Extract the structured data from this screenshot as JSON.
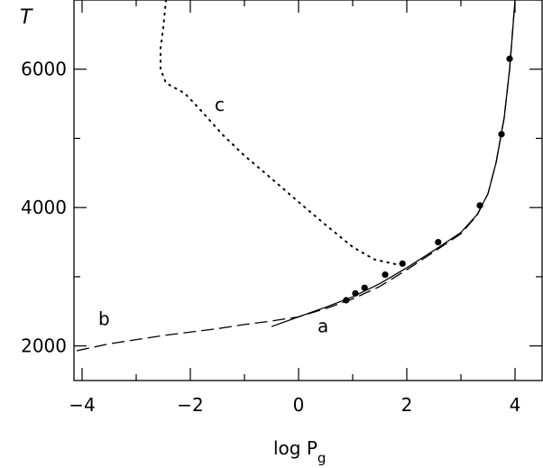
{
  "chart_data": {
    "type": "line",
    "xlabel": "log P",
    "xlabel_subscript": "g",
    "ylabel": "T",
    "xlim": [
      -4.15,
      4.5
    ],
    "ylim": [
      1500,
      7000
    ],
    "xticks": [
      -4,
      -2,
      0,
      2,
      4
    ],
    "xtick_labels": [
      "−4",
      "−2",
      "0",
      "2",
      "4"
    ],
    "yticks": [
      2000,
      4000,
      6000
    ],
    "ytick_labels": [
      "2000",
      "4000",
      "6000"
    ],
    "x_minor_step": 1,
    "y_minor_step": 1000,
    "grid": false,
    "series": [
      {
        "style": "solid",
        "points": [
          [
            -0.5,
            2280
          ],
          [
            0.0,
            2420
          ],
          [
            0.5,
            2560
          ],
          [
            1.0,
            2710
          ],
          [
            1.5,
            2900
          ],
          [
            2.0,
            3130
          ],
          [
            2.5,
            3380
          ],
          [
            3.0,
            3640
          ],
          [
            3.3,
            3900
          ],
          [
            3.5,
            4200
          ],
          [
            3.65,
            4650
          ],
          [
            3.8,
            5300
          ],
          [
            3.9,
            6000
          ],
          [
            3.97,
            6700
          ],
          [
            4.0,
            7000
          ]
        ]
      },
      {
        "style": "dashed",
        "points": [
          [
            -4.1,
            1930
          ],
          [
            -3.5,
            2030
          ],
          [
            -2.5,
            2150
          ],
          [
            -1.5,
            2250
          ],
          [
            -1.0,
            2310
          ],
          [
            -0.5,
            2360
          ],
          [
            0.0,
            2420
          ],
          [
            0.5,
            2540
          ],
          [
            1.0,
            2680
          ],
          [
            1.5,
            2860
          ],
          [
            2.0,
            3100
          ],
          [
            2.5,
            3360
          ],
          [
            3.0,
            3620
          ],
          [
            3.3,
            3890
          ],
          [
            3.5,
            4200
          ],
          [
            3.65,
            4650
          ],
          [
            3.8,
            5300
          ],
          [
            3.9,
            6000
          ],
          [
            3.97,
            6700
          ],
          [
            4.0,
            7000
          ]
        ]
      },
      {
        "style": "dotted",
        "points": [
          [
            -2.45,
            7000
          ],
          [
            -2.5,
            6600
          ],
          [
            -2.55,
            6300
          ],
          [
            -2.55,
            6000
          ],
          [
            -2.45,
            5800
          ],
          [
            -2.1,
            5650
          ],
          [
            -1.8,
            5400
          ],
          [
            -1.4,
            5050
          ],
          [
            -1.0,
            4750
          ],
          [
            -0.5,
            4420
          ],
          [
            0.0,
            4080
          ],
          [
            0.5,
            3750
          ],
          [
            1.0,
            3430
          ],
          [
            1.4,
            3250
          ],
          [
            1.8,
            3180
          ],
          [
            2.0,
            3200
          ]
        ]
      }
    ],
    "markers": [
      [
        0.88,
        2660
      ],
      [
        1.05,
        2760
      ],
      [
        1.22,
        2840
      ],
      [
        1.6,
        3030
      ],
      [
        1.92,
        3190
      ],
      [
        2.58,
        3500
      ],
      [
        3.35,
        4030
      ],
      [
        3.75,
        5060
      ],
      [
        3.9,
        6150
      ]
    ],
    "annotations": [
      {
        "text": "a",
        "x": 0.35,
        "y": 2200
      },
      {
        "text": "b",
        "x": -3.7,
        "y": 2300
      },
      {
        "text": "c",
        "x": -1.55,
        "y": 5400
      }
    ]
  }
}
